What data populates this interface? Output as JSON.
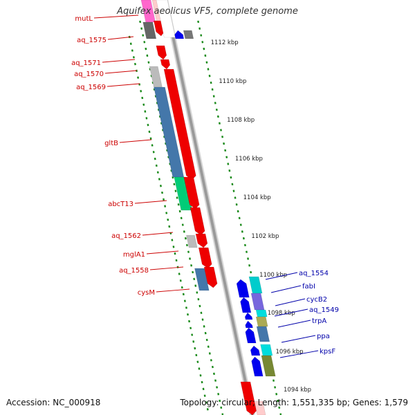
{
  "title": "Aquifex aeolicus VF5, complete genome",
  "footer": {
    "accession": "Accession: NC_000918",
    "summary": "Topology: circular; Length: 1,551,335 bp; Genes: 1,579"
  },
  "colors": {
    "backbone": "#9a9a9a",
    "ticks": "#1a8a1a",
    "left_label": "#cc0000",
    "right_label": "#0000aa",
    "kbp_label": "#222222"
  },
  "kbp_labels": [
    "1112 kbp",
    "1110 kbp",
    "1108 kbp",
    "1106 kbp",
    "1104 kbp",
    "1102 kbp",
    "1100 kbp",
    "1098 kbp",
    "1096 kbp",
    "1094 kbp"
  ],
  "left_genes": [
    "mutL",
    "aq_1575",
    "aq_1571",
    "aq_1570",
    "aq_1569",
    "gltB",
    "abcT13",
    "aq_1562",
    "mglA1",
    "aq_1558",
    "cysM"
  ],
  "right_genes": [
    "aq_1554",
    "fabI",
    "cycB2",
    "aq_1549",
    "trpA",
    "ppa",
    "kpsF"
  ]
}
